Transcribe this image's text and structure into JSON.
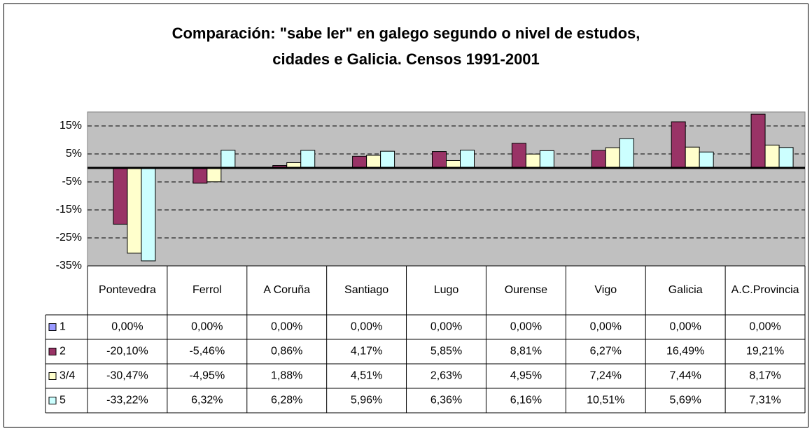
{
  "chart_data": {
    "type": "bar",
    "title": [
      "Comparación: \"sabe ler\" en galego segundo o nivel de estudos,",
      "cidades e Galicia. Censos 1991-2001"
    ],
    "categories": [
      "Pontevedra",
      "Ferrol",
      "A Coruña",
      "Santiago",
      "Lugo",
      "Ourense",
      "Vigo",
      "Galicia",
      "A.C.Provincia"
    ],
    "series": [
      {
        "name": "1",
        "color": "#9999ff",
        "values": [
          0,
          0,
          0,
          0,
          0,
          0,
          0,
          0,
          0
        ],
        "value_labels": [
          "0,00%",
          "0,00%",
          "0,00%",
          "0,00%",
          "0,00%",
          "0,00%",
          "0,00%",
          "0,00%",
          "0,00%"
        ]
      },
      {
        "name": "2",
        "color": "#993366",
        "values": [
          -20.1,
          -5.46,
          0.86,
          4.17,
          5.85,
          8.81,
          6.27,
          16.49,
          19.21
        ],
        "value_labels": [
          "-20,10%",
          "-5,46%",
          "0,86%",
          "4,17%",
          "5,85%",
          "8,81%",
          "6,27%",
          "16,49%",
          "19,21%"
        ]
      },
      {
        "name": "3/4",
        "color": "#ffffcc",
        "values": [
          -30.47,
          -4.95,
          1.88,
          4.51,
          2.63,
          4.95,
          7.24,
          7.44,
          8.17
        ],
        "value_labels": [
          "-30,47%",
          "-4,95%",
          "1,88%",
          "4,51%",
          "2,63%",
          "4,95%",
          "7,24%",
          "7,44%",
          "8,17%"
        ]
      },
      {
        "name": "5",
        "color": "#ccffff",
        "values": [
          -33.22,
          6.32,
          6.28,
          5.96,
          6.36,
          6.16,
          10.51,
          5.69,
          7.31
        ],
        "value_labels": [
          "-33,22%",
          "6,32%",
          "6,28%",
          "5,96%",
          "6,36%",
          "6,16%",
          "10,51%",
          "5,69%",
          "7,31%"
        ]
      }
    ],
    "ylim": [
      -35,
      20
    ],
    "yticks": [
      {
        "value": -35,
        "label": "-35%"
      },
      {
        "value": -25,
        "label": "-25%"
      },
      {
        "value": -15,
        "label": "-15%"
      },
      {
        "value": -5,
        "label": "-5%"
      },
      {
        "value": 5,
        "label": "5%"
      },
      {
        "value": 15,
        "label": "15%"
      }
    ],
    "grid": true
  }
}
